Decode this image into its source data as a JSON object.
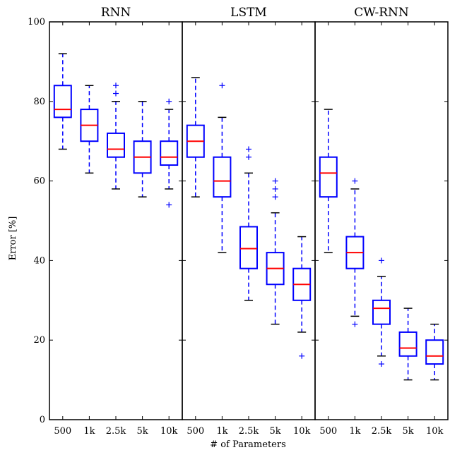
{
  "chart_data": {
    "type": "boxplot",
    "xlabel": "# of Parameters",
    "ylabel": "Error [%]",
    "ylim": [
      0,
      100
    ],
    "yticks": [
      0,
      20,
      40,
      60,
      80,
      100
    ],
    "categories": [
      "500",
      "1k",
      "2.5k",
      "5k",
      "10k"
    ],
    "grid": false,
    "colors": {
      "box": "#0000ff",
      "median": "#ff0000",
      "frame": "#000000"
    },
    "panels": [
      {
        "title": "RNN",
        "boxes": [
          {
            "category": "500",
            "whisker_low": 68,
            "q1": 76,
            "median": 78,
            "q3": 84,
            "whisker_high": 92,
            "outliers": []
          },
          {
            "category": "1k",
            "whisker_low": 62,
            "q1": 70,
            "median": 74,
            "q3": 78,
            "whisker_high": 84,
            "outliers": []
          },
          {
            "category": "2.5k",
            "whisker_low": 58,
            "q1": 66,
            "median": 68,
            "q3": 72,
            "whisker_high": 80,
            "outliers": [
              82,
              84
            ]
          },
          {
            "category": "5k",
            "whisker_low": 56,
            "q1": 62,
            "median": 66,
            "q3": 70,
            "whisker_high": 80,
            "outliers": []
          },
          {
            "category": "10k",
            "whisker_low": 58,
            "q1": 64,
            "median": 66,
            "q3": 70,
            "whisker_high": 78,
            "outliers": [
              80,
              54
            ]
          }
        ]
      },
      {
        "title": "LSTM",
        "boxes": [
          {
            "category": "500",
            "whisker_low": 56,
            "q1": 66,
            "median": 70,
            "q3": 74,
            "whisker_high": 86,
            "outliers": []
          },
          {
            "category": "1k",
            "whisker_low": 42,
            "q1": 56,
            "median": 60,
            "q3": 66,
            "whisker_high": 76,
            "outliers": [
              84
            ]
          },
          {
            "category": "2.5k",
            "whisker_low": 30,
            "q1": 38,
            "median": 43,
            "q3": 48.5,
            "whisker_high": 62,
            "outliers": [
              66,
              68
            ]
          },
          {
            "category": "5k",
            "whisker_low": 24,
            "q1": 34,
            "median": 38,
            "q3": 42,
            "whisker_high": 52,
            "outliers": [
              56,
              58,
              60
            ]
          },
          {
            "category": "10k",
            "whisker_low": 22,
            "q1": 30,
            "median": 34,
            "q3": 38,
            "whisker_high": 46,
            "outliers": [
              16
            ]
          }
        ]
      },
      {
        "title": "CW-RNN",
        "boxes": [
          {
            "category": "500",
            "whisker_low": 42,
            "q1": 56,
            "median": 62,
            "q3": 66,
            "whisker_high": 78,
            "outliers": []
          },
          {
            "category": "1k",
            "whisker_low": 26,
            "q1": 38,
            "median": 42,
            "q3": 46,
            "whisker_high": 58,
            "outliers": [
              60,
              24
            ]
          },
          {
            "category": "2.5k",
            "whisker_low": 16,
            "q1": 24,
            "median": 28,
            "q3": 30,
            "whisker_high": 36,
            "outliers": [
              40,
              14
            ]
          },
          {
            "category": "5k",
            "whisker_low": 10,
            "q1": 16,
            "median": 18,
            "q3": 22,
            "whisker_high": 28,
            "outliers": []
          },
          {
            "category": "10k",
            "whisker_low": 10,
            "q1": 14,
            "median": 16,
            "q3": 20,
            "whisker_high": 24,
            "outliers": []
          }
        ]
      }
    ]
  }
}
